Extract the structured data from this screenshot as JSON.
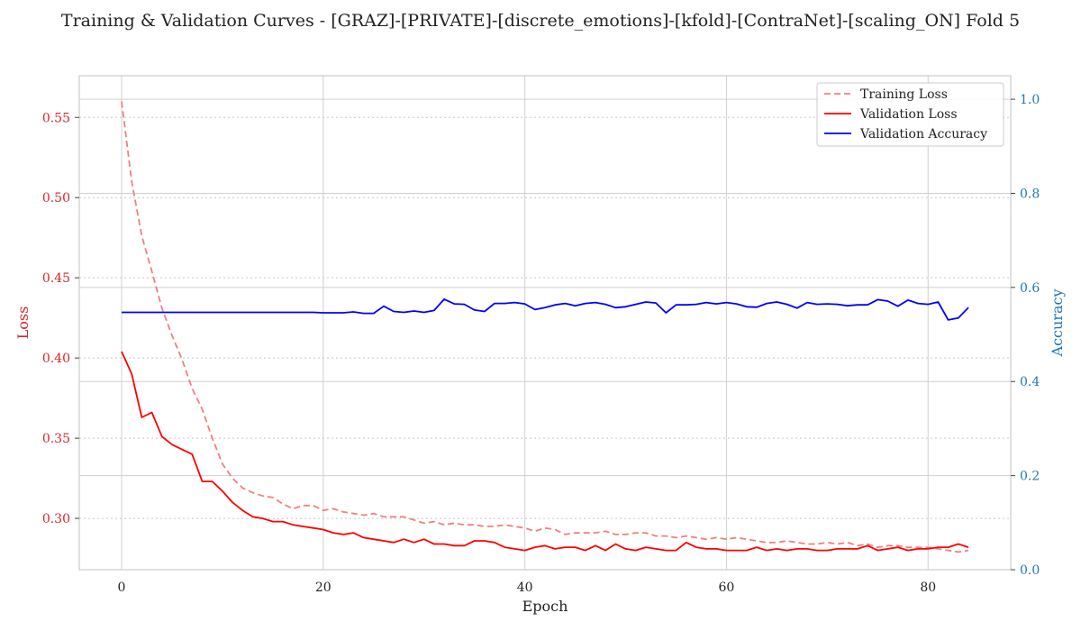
{
  "chart_data": {
    "type": "line",
    "title": "Training & Validation Curves - [GRAZ]-[PRIVATE]-[discrete_emotions]-[kfold]-[ContraNet]-[scaling_ON] Fold 5",
    "xlabel": "Epoch",
    "ylabel_left": "Loss",
    "ylabel_right": "Accuracy",
    "xlim": [
      -4.2,
      88.2
    ],
    "ylim_left": [
      0.268,
      0.576
    ],
    "ylim_right": [
      0.0,
      1.05
    ],
    "x_ticks": [
      0,
      20,
      40,
      60,
      80
    ],
    "x_tick_labels": [
      "0",
      "20",
      "40",
      "60",
      "80"
    ],
    "left_ticks": [
      0.3,
      0.35,
      0.4,
      0.45,
      0.5,
      0.55
    ],
    "left_tick_labels": [
      "0.30",
      "0.35",
      "0.40",
      "0.45",
      "0.50",
      "0.55"
    ],
    "right_ticks": [
      0.0,
      0.2,
      0.4,
      0.6,
      0.8,
      1.0
    ],
    "right_tick_labels": [
      "0.0",
      "0.2",
      "0.4",
      "0.6",
      "0.8",
      "1.0"
    ],
    "grid": true,
    "legend_position": "top-right",
    "series": [
      {
        "name": "Training Loss",
        "axis": "left",
        "color": "#f08080",
        "style": "dashed",
        "values": [
          0.56,
          0.51,
          0.476,
          0.454,
          0.431,
          0.414,
          0.399,
          0.381,
          0.368,
          0.35,
          0.334,
          0.325,
          0.319,
          0.316,
          0.314,
          0.313,
          0.309,
          0.306,
          0.308,
          0.308,
          0.305,
          0.306,
          0.304,
          0.303,
          0.302,
          0.303,
          0.301,
          0.301,
          0.301,
          0.299,
          0.297,
          0.298,
          0.296,
          0.297,
          0.296,
          0.296,
          0.295,
          0.295,
          0.296,
          0.295,
          0.294,
          0.292,
          0.294,
          0.293,
          0.29,
          0.291,
          0.291,
          0.291,
          0.292,
          0.29,
          0.29,
          0.291,
          0.291,
          0.289,
          0.289,
          0.288,
          0.289,
          0.288,
          0.287,
          0.288,
          0.287,
          0.288,
          0.287,
          0.286,
          0.285,
          0.285,
          0.286,
          0.285,
          0.284,
          0.284,
          0.285,
          0.284,
          0.285,
          0.283,
          0.284,
          0.282,
          0.283,
          0.283,
          0.282,
          0.282,
          0.282,
          0.281,
          0.28,
          0.279,
          0.28
        ]
      },
      {
        "name": "Validation Loss",
        "axis": "left",
        "color": "#ff0000",
        "style": "solid",
        "values": [
          0.404,
          0.39,
          0.363,
          0.366,
          0.351,
          0.346,
          0.343,
          0.34,
          0.323,
          0.323,
          0.317,
          0.31,
          0.305,
          0.301,
          0.3,
          0.298,
          0.298,
          0.296,
          0.295,
          0.294,
          0.293,
          0.291,
          0.29,
          0.291,
          0.288,
          0.287,
          0.286,
          0.285,
          0.287,
          0.285,
          0.287,
          0.284,
          0.284,
          0.283,
          0.283,
          0.286,
          0.286,
          0.285,
          0.282,
          0.281,
          0.28,
          0.282,
          0.283,
          0.281,
          0.282,
          0.282,
          0.28,
          0.283,
          0.28,
          0.284,
          0.281,
          0.28,
          0.282,
          0.281,
          0.28,
          0.28,
          0.285,
          0.282,
          0.281,
          0.281,
          0.28,
          0.28,
          0.28,
          0.282,
          0.28,
          0.281,
          0.28,
          0.281,
          0.281,
          0.28,
          0.28,
          0.281,
          0.281,
          0.281,
          0.283,
          0.28,
          0.281,
          0.282,
          0.28,
          0.281,
          0.281,
          0.282,
          0.282,
          0.284,
          0.282
        ]
      },
      {
        "name": "Validation Accuracy",
        "axis": "right",
        "color": "#0000ff",
        "style": "solid",
        "values": [
          0.547,
          0.547,
          0.547,
          0.547,
          0.547,
          0.547,
          0.547,
          0.547,
          0.547,
          0.547,
          0.547,
          0.547,
          0.547,
          0.547,
          0.547,
          0.547,
          0.547,
          0.547,
          0.547,
          0.547,
          0.546,
          0.546,
          0.546,
          0.548,
          0.545,
          0.545,
          0.56,
          0.549,
          0.547,
          0.55,
          0.547,
          0.551,
          0.575,
          0.565,
          0.564,
          0.552,
          0.549,
          0.566,
          0.566,
          0.568,
          0.565,
          0.553,
          0.557,
          0.563,
          0.566,
          0.561,
          0.566,
          0.568,
          0.564,
          0.557,
          0.559,
          0.564,
          0.569,
          0.567,
          0.546,
          0.563,
          0.563,
          0.564,
          0.568,
          0.565,
          0.568,
          0.565,
          0.559,
          0.558,
          0.566,
          0.569,
          0.564,
          0.556,
          0.568,
          0.564,
          0.565,
          0.564,
          0.561,
          0.563,
          0.563,
          0.574,
          0.571,
          0.56,
          0.573,
          0.566,
          0.564,
          0.569,
          0.531,
          0.535,
          0.557
        ]
      }
    ]
  }
}
